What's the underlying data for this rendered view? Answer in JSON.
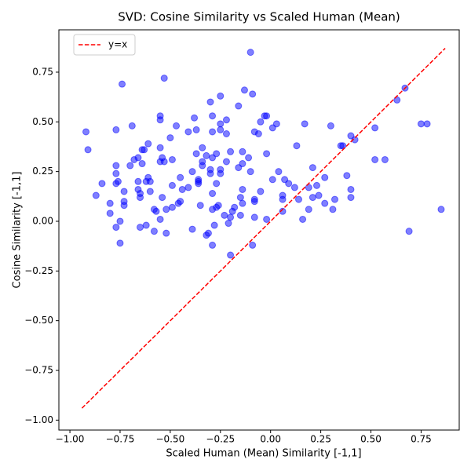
{
  "chart_data": {
    "type": "scatter",
    "title": "SVD: Cosine Similarity vs Scaled Human (Mean)",
    "x_label": "Scaled Human (Mean) Similarity [-1,1]",
    "y_label": "Cosine Similarity [-1,1]",
    "xlim": [
      -1.055,
      0.94
    ],
    "ylim": [
      -1.05,
      0.963
    ],
    "xticks": [
      {
        "value": -1.0,
        "label": "−1.00"
      },
      {
        "value": -0.75,
        "label": "−0.75"
      },
      {
        "value": -0.5,
        "label": "−0.50"
      },
      {
        "value": -0.25,
        "label": "−0.25"
      },
      {
        "value": 0.0,
        "label": "0.00"
      },
      {
        "value": 0.25,
        "label": "0.25"
      },
      {
        "value": 0.5,
        "label": "0.50"
      },
      {
        "value": 0.75,
        "label": "0.75"
      }
    ],
    "yticks": [
      {
        "value": -1.0,
        "label": "−1.00"
      },
      {
        "value": -0.75,
        "label": "−0.75"
      },
      {
        "value": -0.5,
        "label": "−0.50"
      },
      {
        "value": -0.25,
        "label": "−0.25"
      },
      {
        "value": 0.0,
        "label": "0.00"
      },
      0.25,
      {
        "value": 0.5,
        "label": "0.50"
      },
      0.75
    ],
    "color": "blue",
    "x": [
      -0.92,
      -0.91,
      -0.87,
      -0.84,
      -0.8,
      -0.8,
      -0.77,
      -0.77,
      -0.77,
      -0.77,
      -0.76,
      -0.77,
      -0.75,
      -0.75,
      -0.74,
      -0.73,
      -0.73,
      -0.73,
      -0.7,
      -0.69,
      -0.68,
      -0.66,
      -0.66,
      -0.66,
      -0.65,
      -0.65,
      -0.65,
      -0.64,
      -0.64,
      -0.63,
      -0.62,
      -0.62,
      -0.61,
      -0.61,
      -0.6,
      -0.6,
      -0.58,
      -0.58,
      -0.57,
      -0.55,
      -0.55,
      -0.55,
      -0.55,
      -0.54,
      -0.54,
      -0.55,
      -0.53,
      -0.53,
      -0.52,
      -0.52,
      -0.5,
      -0.49,
      -0.49,
      -0.49,
      -0.47,
      -0.46,
      -0.45,
      -0.44,
      -0.45,
      -0.41,
      -0.41,
      -0.39,
      -0.39,
      -0.38,
      -0.37,
      -0.37,
      -0.36,
      -0.36,
      -0.36,
      -0.35,
      -0.34,
      -0.34,
      -0.34,
      -0.32,
      -0.32,
      -0.31,
      -0.3,
      -0.3,
      -0.3,
      -0.29,
      -0.29,
      -0.29,
      -0.29,
      -0.29,
      -0.29,
      -0.28,
      -0.27,
      -0.27,
      -0.27,
      -0.26,
      -0.25,
      -0.25,
      -0.25,
      -0.25,
      -0.25,
      -0.23,
      -0.22,
      -0.22,
      -0.22,
      -0.21,
      -0.2,
      -0.2,
      -0.2,
      -0.19,
      -0.18,
      -0.16,
      -0.16,
      -0.15,
      -0.15,
      -0.14,
      -0.14,
      -0.14,
      -0.14,
      -0.13,
      -0.11,
      -0.1,
      -0.1,
      -0.09,
      -0.09,
      -0.08,
      -0.08,
      -0.08,
      -0.08,
      -0.06,
      -0.05,
      -0.05,
      -0.03,
      -0.02,
      -0.02,
      -0.02,
      0.01,
      0.01,
      0.03,
      0.04,
      0.06,
      0.06,
      0.06,
      0.07,
      0.09,
      0.12,
      0.13,
      0.14,
      0.16,
      0.17,
      0.19,
      0.19,
      0.21,
      0.21,
      0.23,
      0.24,
      0.27,
      0.27,
      0.3,
      0.31,
      0.32,
      0.35,
      0.36,
      0.38,
      0.4,
      0.4,
      0.4,
      0.42,
      0.52,
      0.52,
      0.57,
      0.63,
      0.67,
      0.69,
      0.75,
      0.78,
      0.85
    ],
    "values": [
      0.45,
      0.36,
      0.13,
      0.19,
      0.09,
      0.04,
      0.46,
      0.28,
      0.24,
      0.19,
      0.2,
      -0.03,
      0.0,
      -0.11,
      0.69,
      0.15,
      0.1,
      0.08,
      0.28,
      0.48,
      0.31,
      0.32,
      0.2,
      0.16,
      0.14,
      0.12,
      -0.03,
      0.29,
      0.36,
      0.36,
      0.2,
      -0.02,
      0.39,
      0.22,
      0.2,
      0.15,
      0.06,
      -0.05,
      0.05,
      0.53,
      0.51,
      0.37,
      0.3,
      0.32,
      0.12,
      0.01,
      0.72,
      0.3,
      0.06,
      -0.06,
      0.42,
      0.31,
      0.18,
      0.07,
      0.48,
      0.09,
      0.22,
      0.16,
      0.1,
      0.45,
      0.17,
      0.25,
      -0.04,
      0.52,
      0.46,
      0.34,
      0.21,
      0.2,
      0.19,
      0.08,
      0.37,
      0.3,
      0.28,
      0.33,
      -0.07,
      -0.06,
      0.6,
      0.26,
      0.24,
      0.32,
      0.53,
      0.45,
      0.14,
      0.06,
      -0.12,
      -0.02,
      0.19,
      0.34,
      0.07,
      0.08,
      0.63,
      0.49,
      0.46,
      0.26,
      0.24,
      0.03,
      0.51,
      0.44,
      0.3,
      -0.01,
      0.02,
      0.35,
      -0.17,
      0.05,
      0.07,
      0.58,
      0.27,
      0.12,
      0.03,
      0.35,
      0.16,
      0.09,
      0.29,
      0.66,
      0.32,
      0.85,
      0.25,
      0.64,
      -0.12,
      0.11,
      0.1,
      0.02,
      0.45,
      0.44,
      0.15,
      0.5,
      0.53,
      0.53,
      0.01,
      0.34,
      0.47,
      0.21,
      0.49,
      0.25,
      0.13,
      0.11,
      0.05,
      0.21,
      0.19,
      0.17,
      0.38,
      0.11,
      0.01,
      0.49,
      0.17,
      0.06,
      0.27,
      0.12,
      0.18,
      0.13,
      0.22,
      0.09,
      0.48,
      0.06,
      0.11,
      0.38,
      0.38,
      0.23,
      0.16,
      0.12,
      0.43,
      0.41,
      0.47,
      0.31,
      0.31,
      0.61,
      0.67,
      -0.05,
      0.49,
      0.49,
      0.06
    ],
    "reference_line": {
      "name": "y=x",
      "color": "red",
      "x": [
        -0.94,
        0.87
      ],
      "values": [
        -0.94,
        0.87
      ]
    },
    "legend": "upper left"
  }
}
